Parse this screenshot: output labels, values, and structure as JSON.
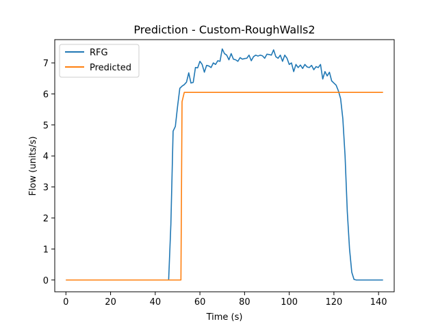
{
  "chart_data": {
    "type": "line",
    "title": "Prediction - Custom-RoughWalls2",
    "xlabel": "Time (s)",
    "ylabel": "Flow (units/s)",
    "xlim": [
      -5,
      147
    ],
    "ylim": [
      -0.38,
      7.75
    ],
    "xticks": [
      0,
      20,
      40,
      60,
      80,
      100,
      120,
      140
    ],
    "yticks": [
      0,
      1,
      2,
      3,
      4,
      5,
      6,
      7
    ],
    "grid": false,
    "legend_position": "upper-left",
    "series": [
      {
        "name": "RFG",
        "color": "#1f77b4",
        "x": [
          0,
          10,
          20,
          30,
          40,
          46,
          47,
          48,
          49,
          50,
          51,
          52,
          53,
          54,
          55,
          56,
          57,
          58,
          59,
          60,
          61,
          62,
          63,
          64,
          65,
          66,
          67,
          68,
          69,
          70,
          71,
          72,
          73,
          74,
          75,
          76,
          77,
          78,
          79,
          80,
          81,
          82,
          83,
          84,
          85,
          86,
          87,
          88,
          89,
          90,
          91,
          92,
          93,
          94,
          95,
          96,
          97,
          98,
          99,
          100,
          101,
          102,
          103,
          104,
          105,
          106,
          107,
          108,
          109,
          110,
          111,
          112,
          113,
          114,
          115,
          116,
          117,
          118,
          119,
          120,
          121,
          122,
          123,
          124,
          125,
          126,
          127,
          128,
          129,
          130,
          131,
          132,
          133,
          135,
          138,
          142
        ],
        "y": [
          0,
          0,
          0,
          0,
          0,
          0,
          1.8,
          4.8,
          4.95,
          5.6,
          6.18,
          6.25,
          6.3,
          6.38,
          6.68,
          6.35,
          6.37,
          6.85,
          6.84,
          7.05,
          6.95,
          6.7,
          6.92,
          6.9,
          6.85,
          7.0,
          6.95,
          7.07,
          7.05,
          7.45,
          7.3,
          7.25,
          7.1,
          7.3,
          7.12,
          7.1,
          7.05,
          7.17,
          7.12,
          7.14,
          7.15,
          7.25,
          7.07,
          7.2,
          7.25,
          7.22,
          7.25,
          7.23,
          7.15,
          7.28,
          7.27,
          7.25,
          7.42,
          7.2,
          7.15,
          7.25,
          7.05,
          7.25,
          7.15,
          6.95,
          7.0,
          6.72,
          6.95,
          6.85,
          6.93,
          6.82,
          6.95,
          6.87,
          6.85,
          6.92,
          6.78,
          6.88,
          6.85,
          6.95,
          6.48,
          6.72,
          6.58,
          6.7,
          6.42,
          6.35,
          6.28,
          6.1,
          5.85,
          5.2,
          4.0,
          2.2,
          1.0,
          0.25,
          0.02,
          0,
          0,
          0,
          0,
          0,
          0,
          0
        ]
      },
      {
        "name": "Predicted",
        "color": "#ff7f0e",
        "x": [
          0,
          10,
          20,
          30,
          40,
          50,
          51.5,
          52,
          53,
          60,
          80,
          100,
          120,
          142
        ],
        "y": [
          0,
          0,
          0,
          0,
          0,
          0,
          0,
          5.75,
          6.05,
          6.05,
          6.05,
          6.05,
          6.05,
          6.05
        ]
      }
    ]
  }
}
